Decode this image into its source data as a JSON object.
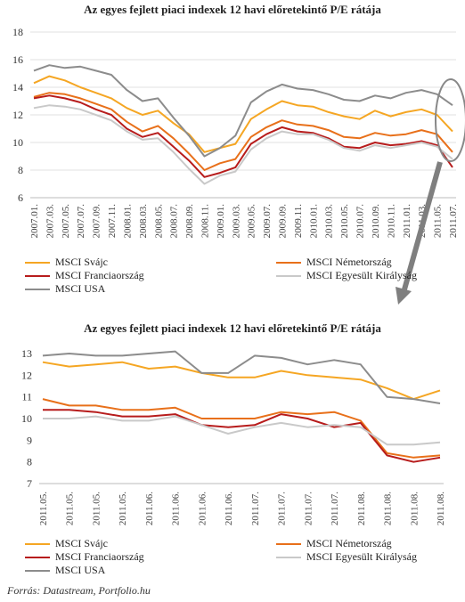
{
  "source": "Forrás: Datastream, Portfolio.hu",
  "chart_data": [
    {
      "type": "line",
      "title": "Az egyes fejlett piaci indexek 12 havi előretekintő P/E rátája",
      "ylim": [
        6,
        18
      ],
      "yticks": [
        "6",
        "8",
        "10",
        "12",
        "14",
        "16",
        "18"
      ],
      "grid": true,
      "categories": [
        "2007.01.",
        "2007.03.",
        "2007.05.",
        "2007.07.",
        "2007.09.",
        "2007.11.",
        "2008.01.",
        "2008.03.",
        "2008.05.",
        "2008.07.",
        "2008.09.",
        "2008.11.",
        "2009.01.",
        "2009.03.",
        "2009.05.",
        "2009.07.",
        "2009.09.",
        "2009.11.",
        "2010.01.",
        "2010.03.",
        "2010.05.",
        "2010.07.",
        "2010.09.",
        "2010.11.",
        "2011.01.",
        "2011.03.",
        "2011.05.",
        "2011.07."
      ],
      "series": [
        {
          "name": "MSCI Svájc",
          "color": "#f5a623",
          "values": [
            14.3,
            14.8,
            14.5,
            14.0,
            13.6,
            13.2,
            12.5,
            12.0,
            12.3,
            11.4,
            10.6,
            9.3,
            9.6,
            9.9,
            11.7,
            12.4,
            13.0,
            12.7,
            12.6,
            12.2,
            11.9,
            11.7,
            12.3,
            11.9,
            12.2,
            12.4,
            12.0,
            10.8
          ]
        },
        {
          "name": "MSCI Németország",
          "color": "#e8701a",
          "values": [
            13.3,
            13.6,
            13.5,
            13.2,
            12.8,
            12.4,
            11.5,
            10.8,
            11.2,
            10.3,
            9.2,
            8.0,
            8.5,
            8.8,
            10.4,
            11.1,
            11.6,
            11.3,
            11.2,
            10.9,
            10.4,
            10.3,
            10.7,
            10.5,
            10.6,
            10.9,
            10.6,
            9.3
          ]
        },
        {
          "name": "MSCI Franciaország",
          "color": "#b71c1c",
          "values": [
            13.2,
            13.4,
            13.2,
            12.9,
            12.4,
            12.0,
            11.0,
            10.4,
            10.7,
            9.7,
            8.7,
            7.5,
            7.8,
            8.2,
            9.9,
            10.6,
            11.1,
            10.8,
            10.7,
            10.3,
            9.7,
            9.6,
            10.0,
            9.8,
            9.9,
            10.1,
            9.8,
            8.2
          ]
        },
        {
          "name": "MSCI Egyesült Királyság",
          "color": "#c9c9c9",
          "values": [
            12.5,
            12.7,
            12.6,
            12.4,
            12.0,
            11.6,
            10.8,
            10.2,
            10.3,
            9.3,
            8.1,
            7.0,
            7.6,
            7.9,
            9.5,
            10.3,
            10.8,
            10.6,
            10.6,
            10.2,
            9.6,
            9.4,
            9.8,
            9.6,
            9.8,
            10.0,
            9.7,
            8.8
          ]
        },
        {
          "name": "MSCI USA",
          "color": "#8c8c8c",
          "values": [
            15.2,
            15.6,
            15.4,
            15.5,
            15.2,
            14.9,
            13.8,
            13.0,
            13.2,
            11.8,
            10.5,
            9.0,
            9.6,
            10.5,
            12.9,
            13.7,
            14.2,
            13.9,
            13.8,
            13.5,
            13.1,
            13.0,
            13.4,
            13.2,
            13.6,
            13.8,
            13.5,
            12.7
          ]
        }
      ]
    },
    {
      "type": "line",
      "title": "Az egyes fejlett piaci indexek 12 havi előretekintő P/E rátája",
      "ylim": [
        7,
        13
      ],
      "yticks": [
        "7",
        "8",
        "9",
        "10",
        "11",
        "12",
        "13"
      ],
      "grid": false,
      "categories": [
        "2011.05.",
        "2011.05.",
        "2011.05.",
        "2011.05.",
        "2011.06.",
        "2011.06.",
        "2011.06.",
        "2011.06.",
        "2011.07.",
        "2011.07.",
        "2011.07.",
        "2011.07.",
        "2011.08.",
        "2011.08.",
        "2011.08.",
        "2011.08."
      ],
      "series": [
        {
          "name": "MSCI Svájc",
          "color": "#f5a623",
          "values": [
            12.6,
            12.4,
            12.5,
            12.6,
            12.3,
            12.4,
            12.1,
            11.9,
            11.9,
            12.2,
            12.0,
            11.9,
            11.8,
            11.4,
            10.9,
            11.3
          ]
        },
        {
          "name": "MSCI Németország",
          "color": "#e8701a",
          "values": [
            10.9,
            10.6,
            10.6,
            10.4,
            10.4,
            10.5,
            10.0,
            10.0,
            10.0,
            10.3,
            10.2,
            10.3,
            9.9,
            8.4,
            8.2,
            8.3
          ]
        },
        {
          "name": "MSCI Franciaország",
          "color": "#b71c1c",
          "values": [
            10.4,
            10.4,
            10.3,
            10.1,
            10.1,
            10.2,
            9.7,
            9.6,
            9.7,
            10.2,
            10.0,
            9.6,
            9.8,
            8.3,
            8.0,
            8.2
          ]
        },
        {
          "name": "MSCI Egyesült Királyság",
          "color": "#c9c9c9",
          "values": [
            10.0,
            10.0,
            10.1,
            9.9,
            9.9,
            10.1,
            9.7,
            9.3,
            9.6,
            9.8,
            9.6,
            9.7,
            9.6,
            8.8,
            8.8,
            8.9
          ]
        },
        {
          "name": "MSCI USA",
          "color": "#8c8c8c",
          "values": [
            12.9,
            13.0,
            12.9,
            12.9,
            13.0,
            13.1,
            12.1,
            12.1,
            12.9,
            12.8,
            12.5,
            12.7,
            12.5,
            11.0,
            10.9,
            10.7
          ]
        }
      ]
    }
  ]
}
